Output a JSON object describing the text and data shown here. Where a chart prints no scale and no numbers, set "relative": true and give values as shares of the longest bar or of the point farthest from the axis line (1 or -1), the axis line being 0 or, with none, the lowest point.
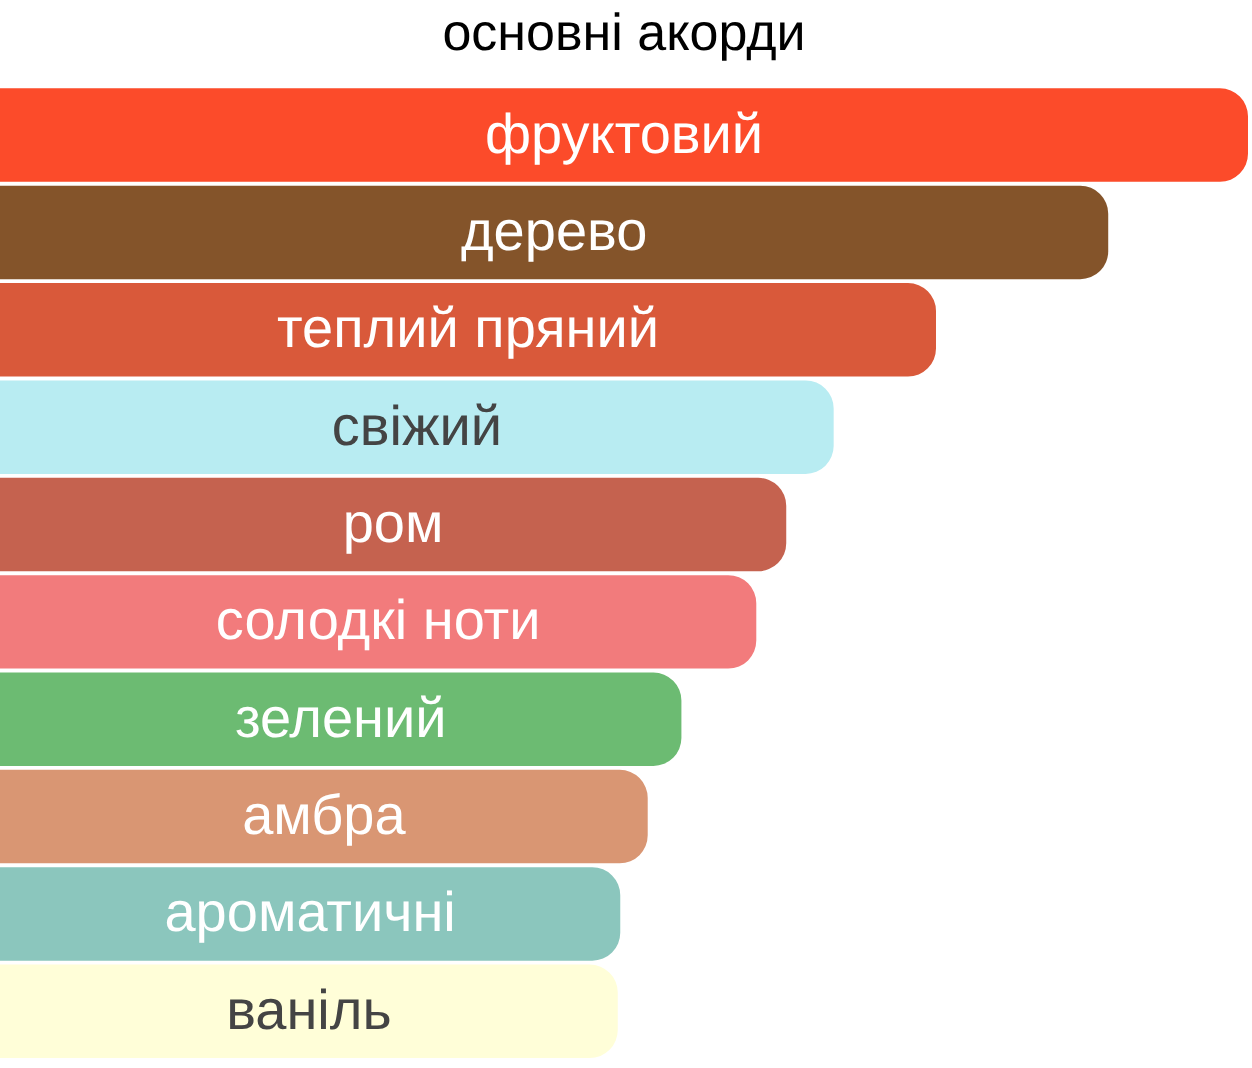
{
  "chart_data": {
    "type": "bar",
    "orientation": "horizontal",
    "relative": true,
    "title": "основні акорди",
    "legend": false,
    "categories": [
      "фруктовий",
      "дерево",
      "теплий пряний",
      "свіжий",
      "ром",
      "солодкі ноти",
      "зелений",
      "амбра",
      "ароматичні",
      "ваніль"
    ],
    "values": [
      1,
      0.888,
      0.75,
      0.668,
      0.63,
      0.606,
      0.546,
      0.519,
      0.497,
      0.495
    ],
    "colors": [
      "#fc4b2a",
      "#84542a",
      "#d9593a",
      "#b8ecf2",
      "#c5624f",
      "#f27b7c",
      "#6cbb72",
      "#d99673",
      "#8bc6bd",
      "#fffed8"
    ]
  }
}
